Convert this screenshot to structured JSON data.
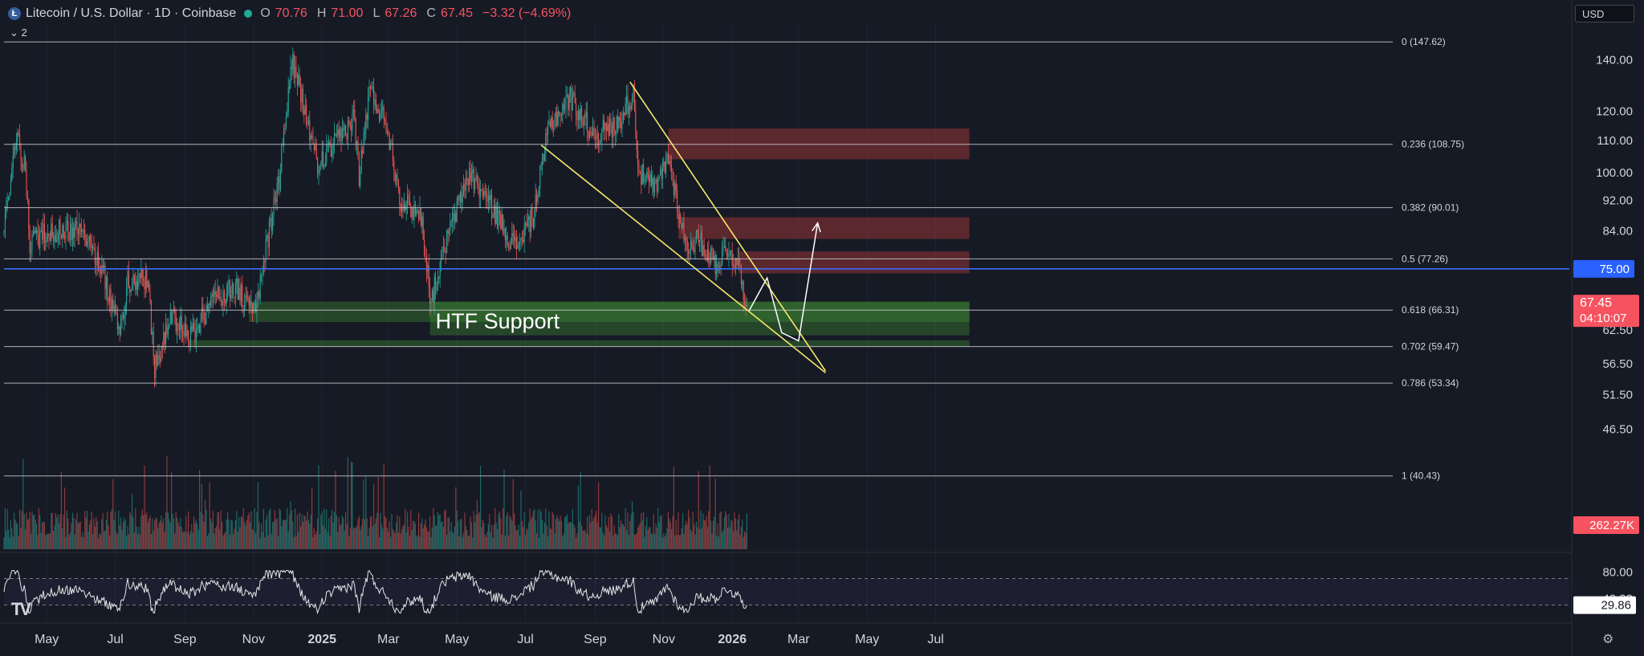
{
  "header": {
    "symbol_title": "Litecoin / U.S. Dollar · 1D · Coinbase",
    "open_label": "O",
    "open": "70.76",
    "high_label": "H",
    "high": "71.00",
    "low_label": "L",
    "low": "67.26",
    "close_label": "C",
    "close": "67.45",
    "change": "−3.32 (−4.69%)",
    "collapse_label": "2",
    "currency": "USD"
  },
  "colors": {
    "background": "#161a25",
    "up": "#26a69a",
    "down": "#ef5350",
    "trendline": "#f5e86a",
    "fib_line": "#c9ccd4",
    "level_line": "#3b6cf6",
    "supply_zone": "#b03a3a",
    "demand_zone": "#3e8a33",
    "price_badge": "#f7525f",
    "level_badge": "#2962ff"
  },
  "chart_data": {
    "type": "candlestick",
    "symbol": "LTC/USD",
    "interval": "1D",
    "y_scale": "log",
    "ylim": [
      43,
      152
    ],
    "price_ticks": [
      "140.00",
      "120.00",
      "110.00",
      "100.00",
      "92.00",
      "84.00",
      "62.50",
      "56.50",
      "51.50",
      "46.50"
    ],
    "x_ticks": [
      "May",
      "Jul",
      "Sep",
      "Nov",
      "2025",
      "Mar",
      "May",
      "Jul",
      "Sep",
      "Nov",
      "2026",
      "Mar",
      "May",
      "Jul"
    ],
    "x_tick_dates": [
      "2024-05-01",
      "2024-07-01",
      "2024-09-01",
      "2024-11-01",
      "2025-01-01",
      "2025-03-01",
      "2025-05-01",
      "2025-07-01",
      "2025-09-01",
      "2025-11-01",
      "2026-01-01",
      "2026-03-01",
      "2026-05-01",
      "2026-07-01"
    ],
    "price_anchors": [
      [
        "2024-03-24",
        84
      ],
      [
        "2024-04-01",
        105
      ],
      [
        "2024-04-05",
        110
      ],
      [
        "2024-04-12",
        100
      ],
      [
        "2024-04-16",
        80
      ],
      [
        "2024-04-25",
        83
      ],
      [
        "2024-05-10",
        84
      ],
      [
        "2024-06-01",
        85
      ],
      [
        "2024-06-18",
        76
      ],
      [
        "2024-07-05",
        62
      ],
      [
        "2024-07-12",
        72
      ],
      [
        "2024-07-30",
        73
      ],
      [
        "2024-08-05",
        56
      ],
      [
        "2024-08-20",
        65
      ],
      [
        "2024-09-06",
        61
      ],
      [
        "2024-09-28",
        69
      ],
      [
        "2024-10-15",
        71
      ],
      [
        "2024-11-03",
        66
      ],
      [
        "2024-11-12",
        80
      ],
      [
        "2024-11-24",
        98
      ],
      [
        "2024-12-05",
        140
      ],
      [
        "2024-12-18",
        118
      ],
      [
        "2024-12-28",
        102
      ],
      [
        "2025-01-15",
        110
      ],
      [
        "2025-01-30",
        118
      ],
      [
        "2025-02-03",
        98
      ],
      [
        "2025-02-12",
        128
      ],
      [
        "2025-02-28",
        115
      ],
      [
        "2025-03-12",
        92
      ],
      [
        "2025-03-30",
        88
      ],
      [
        "2025-04-08",
        68
      ],
      [
        "2025-04-22",
        82
      ],
      [
        "2025-05-12",
        100
      ],
      [
        "2025-06-01",
        90
      ],
      [
        "2025-06-22",
        80
      ],
      [
        "2025-07-08",
        88
      ],
      [
        "2025-07-22",
        115
      ],
      [
        "2025-08-10",
        125
      ],
      [
        "2025-08-30",
        112
      ],
      [
        "2025-09-20",
        115
      ],
      [
        "2025-10-05",
        127
      ],
      [
        "2025-10-10",
        100
      ],
      [
        "2025-10-25",
        95
      ],
      [
        "2025-11-05",
        105
      ],
      [
        "2025-11-14",
        90
      ],
      [
        "2025-11-21",
        80
      ],
      [
        "2025-12-01",
        82
      ],
      [
        "2025-12-18",
        76
      ],
      [
        "2025-12-28",
        80
      ],
      [
        "2026-01-07",
        75
      ],
      [
        "2026-01-14",
        67.45
      ]
    ],
    "last_price": 67.45,
    "countdown": "04:10:07",
    "horizontal_level": {
      "value": 75.0,
      "label": "75.00"
    },
    "fib_levels": [
      {
        "ratio": "0",
        "value": 147.62,
        "label": "0 (147.62)"
      },
      {
        "ratio": "0.236",
        "value": 108.75,
        "label": "0.236 (108.75)"
      },
      {
        "ratio": "0.382",
        "value": 90.01,
        "label": "0.382 (90.01)"
      },
      {
        "ratio": "0.5",
        "value": 77.26,
        "label": "0.5 (77.26)"
      },
      {
        "ratio": "0.618",
        "value": 66.31,
        "label": "0.618 (66.31)"
      },
      {
        "ratio": "0.702",
        "value": 59.47,
        "label": "0.702 (59.47)"
      },
      {
        "ratio": "0.786",
        "value": 53.34,
        "label": "0.786 (53.34)"
      },
      {
        "ratio": "1",
        "value": 40.43,
        "label": "1 (40.43)"
      }
    ],
    "supply_zones": [
      {
        "from_date": "2025-11-05",
        "to_date": "2026-07-31",
        "low": 104,
        "high": 114
      },
      {
        "from_date": "2025-11-14",
        "to_date": "2026-07-31",
        "low": 82,
        "high": 87.5
      },
      {
        "from_date": "2026-01-07",
        "to_date": "2026-07-31",
        "low": 74,
        "high": 79
      }
    ],
    "demand_zones": [
      {
        "from_date": "2024-10-28",
        "to_date": "2026-07-31",
        "low": 64,
        "high": 68
      },
      {
        "from_date": "2025-04-07",
        "to_date": "2026-07-31",
        "low": 61.5,
        "high": 68
      },
      {
        "from_date": "2024-09-06",
        "to_date": "2026-07-31",
        "low": 59.5,
        "high": 60.6
      }
    ],
    "annotation": {
      "text": "HTF Support",
      "date": "2025-04-12",
      "price": 62.8
    },
    "wedge_lines": [
      {
        "from": [
          "2025-07-15",
          108.5
        ],
        "to": [
          "2026-03-25",
          55
        ]
      },
      {
        "from": [
          "2025-10-02",
          131
        ],
        "to": [
          "2026-03-25",
          55.3
        ]
      }
    ],
    "projection_path": [
      [
        "2026-01-16",
        66.2
      ],
      [
        "2026-02-01",
        73
      ],
      [
        "2026-02-14",
        62
      ],
      [
        "2026-02-29",
        60.5
      ],
      [
        "2026-03-18",
        86
      ]
    ],
    "volume": {
      "last_label": "262.27K",
      "max_thousands": 760,
      "last_thousands": 262.27
    },
    "rsi": {
      "value": 29.86,
      "value_label": "29.86",
      "ylim": [
        10,
        90
      ],
      "tick_labels": [
        "80.00",
        "40.00"
      ],
      "bands": [
        70,
        30
      ]
    }
  }
}
